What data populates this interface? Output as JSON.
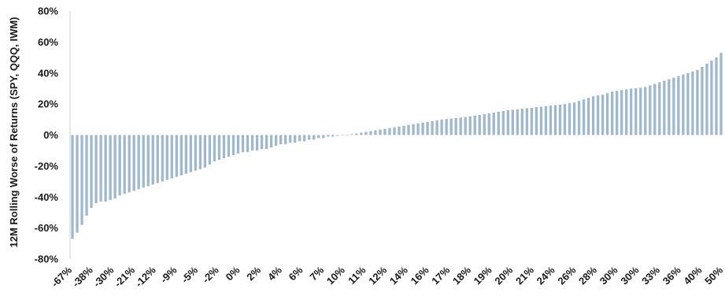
{
  "chart_data": {
    "type": "bar",
    "title": "",
    "xlabel": "",
    "ylabel": "12M Rolling Worse of Returns (SPY, QQQ, IWM)",
    "ylim": [
      -80,
      80
    ],
    "y_unit": "%",
    "y_ticks": [
      "80%",
      "60%",
      "40%",
      "20%",
      "0%",
      "-20%",
      "-40%",
      "-60%",
      "-80%"
    ],
    "x_tick_labels": [
      "-67%",
      "-38%",
      "-30%",
      "-21%",
      "-12%",
      "-9%",
      "-5%",
      "-2%",
      "0%",
      "2%",
      "4%",
      "6%",
      "7%",
      "10%",
      "11%",
      "12%",
      "14%",
      "16%",
      "17%",
      "18%",
      "19%",
      "20%",
      "21%",
      "24%",
      "26%",
      "28%",
      "30%",
      "30%",
      "33%",
      "36%",
      "40%",
      "50%"
    ],
    "bar_color": "#9fb8cc",
    "grid": false,
    "legend": "none",
    "sorted": "ascending",
    "values": [
      -67,
      -63,
      -58,
      -52,
      -47,
      -44,
      -43,
      -43,
      -42,
      -41,
      -39,
      -38,
      -37,
      -36,
      -35,
      -34,
      -33,
      -32,
      -31,
      -30,
      -29,
      -28,
      -27,
      -26,
      -25,
      -24,
      -23,
      -22,
      -21,
      -19,
      -17,
      -16,
      -15,
      -14,
      -13,
      -12,
      -11,
      -11,
      -10,
      -10,
      -9,
      -9,
      -8,
      -7,
      -6,
      -6,
      -5,
      -5,
      -4,
      -4,
      -3,
      -3,
      -2,
      -2,
      -1,
      -1,
      -0.5,
      0,
      0,
      0.5,
      1,
      1.5,
      2,
      2.5,
      3,
      3.5,
      4,
      4.5,
      5,
      5.5,
      6,
      6.5,
      7,
      7.5,
      8,
      8.5,
      9,
      9.5,
      10,
      10.3,
      10.6,
      11,
      11.3,
      11.6,
      12,
      12.5,
      13,
      13.5,
      14,
      14.5,
      15,
      15.5,
      16,
      16.3,
      16.6,
      17,
      17.3,
      17.6,
      18,
      18.3,
      18.6,
      19,
      19.3,
      19.6,
      20,
      20.5,
      21,
      22,
      23,
      24,
      25,
      25.5,
      26,
      27,
      28,
      28.5,
      29,
      29.5,
      30,
      30.2,
      30.5,
      31,
      32,
      33,
      34,
      35,
      36,
      37,
      38,
      39,
      40,
      41,
      42,
      44,
      46,
      48,
      50,
      53
    ]
  }
}
